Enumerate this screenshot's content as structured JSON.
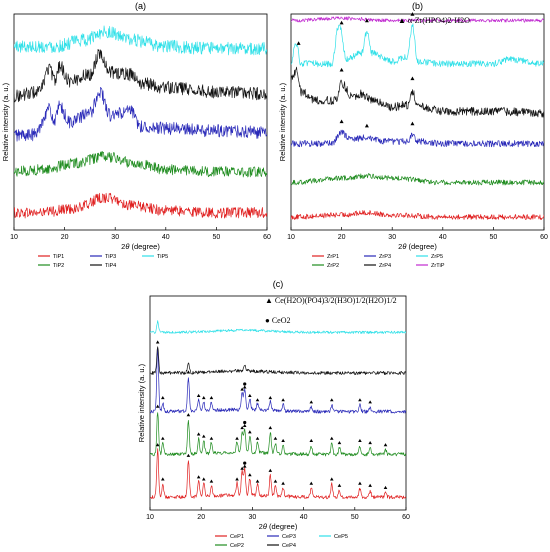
{
  "chart_data": [
    {
      "panel_label": "(a)",
      "type": "line",
      "xlabel": "2θ (degree)",
      "ylabel": "Relative intensity (a. u.)",
      "xlim": [
        10,
        60
      ],
      "xticks": [
        10,
        20,
        30,
        40,
        50,
        60
      ],
      "legend_position": "bottom",
      "series": [
        {
          "name": "TiP1",
          "color": "#e02020",
          "offset": 0.08,
          "noise": 0.025,
          "points": [
            [
              10,
              0.08
            ],
            [
              15,
              0.08
            ],
            [
              22,
              0.1
            ],
            [
              28,
              0.15
            ],
            [
              34,
              0.11
            ],
            [
              40,
              0.09
            ],
            [
              50,
              0.08
            ],
            [
              60,
              0.08
            ]
          ]
        },
        {
          "name": "TiP2",
          "color": "#1f8c1f",
          "offset": 0.27,
          "noise": 0.025,
          "points": [
            [
              10,
              0.27
            ],
            [
              16,
              0.28
            ],
            [
              22,
              0.31
            ],
            [
              28,
              0.34
            ],
            [
              34,
              0.31
            ],
            [
              40,
              0.28
            ],
            [
              50,
              0.27
            ],
            [
              60,
              0.27
            ]
          ]
        },
        {
          "name": "TiP3",
          "color": "#2929b8",
          "offset": 0.46,
          "noise": 0.03,
          "points": [
            [
              10,
              0.44
            ],
            [
              14,
              0.44
            ],
            [
              17,
              0.56
            ],
            [
              18,
              0.5
            ],
            [
              19,
              0.57
            ],
            [
              21,
              0.5
            ],
            [
              25,
              0.54
            ],
            [
              27,
              0.64
            ],
            [
              29,
              0.53
            ],
            [
              33,
              0.55
            ],
            [
              35,
              0.48
            ],
            [
              40,
              0.47
            ],
            [
              50,
              0.46
            ],
            [
              60,
              0.45
            ]
          ]
        },
        {
          "name": "TiP4",
          "color": "#111111",
          "offset": 0.66,
          "noise": 0.03,
          "points": [
            [
              10,
              0.62
            ],
            [
              15,
              0.64
            ],
            [
              17,
              0.75
            ],
            [
              18,
              0.69
            ],
            [
              19,
              0.76
            ],
            [
              21,
              0.69
            ],
            [
              25,
              0.72
            ],
            [
              27,
              0.82
            ],
            [
              29,
              0.73
            ],
            [
              33,
              0.72
            ],
            [
              35,
              0.68
            ],
            [
              40,
              0.66
            ],
            [
              50,
              0.64
            ],
            [
              60,
              0.63
            ]
          ]
        },
        {
          "name": "TiP5",
          "color": "#2fe0e8",
          "offset": 0.86,
          "noise": 0.03,
          "points": [
            [
              10,
              0.85
            ],
            [
              18,
              0.85
            ],
            [
              24,
              0.88
            ],
            [
              28,
              0.92
            ],
            [
              33,
              0.88
            ],
            [
              40,
              0.85
            ],
            [
              50,
              0.84
            ],
            [
              60,
              0.84
            ]
          ]
        }
      ]
    },
    {
      "panel_label": "(b)",
      "type": "line",
      "xlabel": "2θ (degree)",
      "ylabel": "Relative intensity (a. u.)",
      "xlim": [
        10,
        60
      ],
      "xticks": [
        10,
        20,
        30,
        40,
        50,
        60
      ],
      "legend_position": "bottom",
      "annotation": "▲ α-Zr(HPO4)2·H2O",
      "marker_positions": [
        11.5,
        20,
        25,
        34
      ],
      "series": [
        {
          "name": "ZrP1",
          "color": "#e02020",
          "noise": 0.012,
          "points": [
            [
              10,
              0.06
            ],
            [
              20,
              0.07
            ],
            [
              25,
              0.08
            ],
            [
              30,
              0.07
            ],
            [
              40,
              0.06
            ],
            [
              60,
              0.06
            ]
          ]
        },
        {
          "name": "ZrP2",
          "color": "#1f8c1f",
          "noise": 0.012,
          "points": [
            [
              10,
              0.22
            ],
            [
              20,
              0.24
            ],
            [
              25,
              0.25
            ],
            [
              30,
              0.24
            ],
            [
              40,
              0.22
            ],
            [
              60,
              0.22
            ]
          ]
        },
        {
          "name": "ZrP3",
          "color": "#2929b8",
          "noise": 0.015,
          "points": [
            [
              10,
              0.4
            ],
            [
              18,
              0.4
            ],
            [
              20,
              0.45
            ],
            [
              22,
              0.42
            ],
            [
              25,
              0.43
            ],
            [
              28,
              0.41
            ],
            [
              33,
              0.41
            ],
            [
              34,
              0.44
            ],
            [
              35,
              0.41
            ],
            [
              40,
              0.4
            ],
            [
              60,
              0.4
            ]
          ]
        },
        {
          "name": "ZrP4",
          "color": "#111111",
          "noise": 0.02,
          "points": [
            [
              10,
              0.7
            ],
            [
              11,
              0.74
            ],
            [
              12,
              0.64
            ],
            [
              15,
              0.6
            ],
            [
              19,
              0.6
            ],
            [
              20,
              0.68
            ],
            [
              22,
              0.62
            ],
            [
              24,
              0.63
            ],
            [
              26,
              0.6
            ],
            [
              30,
              0.57
            ],
            [
              33,
              0.58
            ],
            [
              34,
              0.64
            ],
            [
              35,
              0.57
            ],
            [
              40,
              0.55
            ],
            [
              50,
              0.55
            ],
            [
              60,
              0.54
            ]
          ]
        },
        {
          "name": "ZrP5",
          "color": "#2fe0e8",
          "noise": 0.015,
          "points": [
            [
              10,
              0.78
            ],
            [
              11,
              0.86
            ],
            [
              12,
              0.77
            ],
            [
              18,
              0.77
            ],
            [
              19.5,
              0.95
            ],
            [
              21,
              0.79
            ],
            [
              24,
              0.82
            ],
            [
              25,
              0.92
            ],
            [
              26,
              0.82
            ],
            [
              30,
              0.78
            ],
            [
              33,
              0.8
            ],
            [
              34,
              0.95
            ],
            [
              35,
              0.78
            ],
            [
              40,
              0.77
            ],
            [
              50,
              0.77
            ],
            [
              53,
              0.79
            ],
            [
              60,
              0.77
            ]
          ]
        },
        {
          "name": "ZrTiP",
          "color": "#c02ad0",
          "noise": 0.008,
          "points": [
            [
              10,
              0.97
            ],
            [
              20,
              0.98
            ],
            [
              30,
              0.97
            ],
            [
              40,
              0.97
            ],
            [
              60,
              0.97
            ]
          ]
        }
      ]
    },
    {
      "panel_label": "(c)",
      "type": "line",
      "xlabel": "2θ (degree)",
      "ylabel": "Relative intensity (a. u.)",
      "xlim": [
        10,
        60
      ],
      "xticks": [
        10,
        20,
        30,
        40,
        50,
        60
      ],
      "legend_position": "bottom",
      "annotation_triangle": "▲ Ce(H2O)(PO4)3/2(H3O)1/2(H2O)1/2",
      "annotation_circle": "● CeO2",
      "series": [
        {
          "name": "CeP1",
          "color": "#e02020",
          "baseline": 0.06,
          "noise": 0.008,
          "peaks": [
            [
              11.5,
              0.22
            ],
            [
              12.5,
              0.06
            ],
            [
              17.5,
              0.17
            ],
            [
              19.5,
              0.07
            ],
            [
              20.5,
              0.06
            ],
            [
              22,
              0.05
            ],
            [
              27,
              0.06
            ],
            [
              28,
              0.11
            ],
            [
              28.5,
              0.12
            ],
            [
              29.5,
              0.08
            ],
            [
              31,
              0.05
            ],
            [
              33.5,
              0.1
            ],
            [
              34.5,
              0.05
            ],
            [
              36,
              0.04
            ],
            [
              41.5,
              0.04
            ],
            [
              45.5,
              0.06
            ],
            [
              47,
              0.03
            ],
            [
              51,
              0.04
            ],
            [
              53,
              0.03
            ],
            [
              56,
              0.02
            ]
          ]
        },
        {
          "name": "CeP2",
          "color": "#1f8c1f",
          "baseline": 0.26,
          "noise": 0.008,
          "peaks": [
            [
              11.5,
              0.2
            ],
            [
              12.5,
              0.05
            ],
            [
              17.5,
              0.16
            ],
            [
              19.5,
              0.07
            ],
            [
              20.5,
              0.06
            ],
            [
              22,
              0.05
            ],
            [
              27,
              0.05
            ],
            [
              28,
              0.1
            ],
            [
              28.5,
              0.11
            ],
            [
              29.5,
              0.08
            ],
            [
              31,
              0.05
            ],
            [
              33.5,
              0.1
            ],
            [
              34.5,
              0.05
            ],
            [
              36,
              0.04
            ],
            [
              41.5,
              0.04
            ],
            [
              45.5,
              0.05
            ],
            [
              47,
              0.03
            ],
            [
              51,
              0.04
            ],
            [
              53,
              0.03
            ],
            [
              56,
              0.02
            ]
          ]
        },
        {
          "name": "CeP3",
          "color": "#2929b8",
          "baseline": 0.46,
          "noise": 0.008,
          "peaks": [
            [
              11.5,
              0.3
            ],
            [
              12.5,
              0.04
            ],
            [
              17.5,
              0.16
            ],
            [
              19.5,
              0.05
            ],
            [
              20.5,
              0.04
            ],
            [
              22,
              0.04
            ],
            [
              28,
              0.08
            ],
            [
              28.5,
              0.09
            ],
            [
              29.5,
              0.05
            ],
            [
              31,
              0.03
            ],
            [
              33.5,
              0.04
            ],
            [
              36,
              0.03
            ],
            [
              41.5,
              0.02
            ],
            [
              45.5,
              0.03
            ],
            [
              51,
              0.03
            ],
            [
              53,
              0.02
            ]
          ]
        },
        {
          "name": "CeP4",
          "color": "#111111",
          "baseline": 0.64,
          "noise": 0.008,
          "peaks": [
            [
              11.5,
              0.12
            ],
            [
              17.5,
              0.05
            ],
            [
              28.5,
              0.03
            ]
          ]
        },
        {
          "name": "CeP5",
          "color": "#2fe0e8",
          "baseline": 0.83,
          "noise": 0.006,
          "peaks": [
            [
              11.5,
              0.05
            ]
          ]
        }
      ]
    }
  ]
}
